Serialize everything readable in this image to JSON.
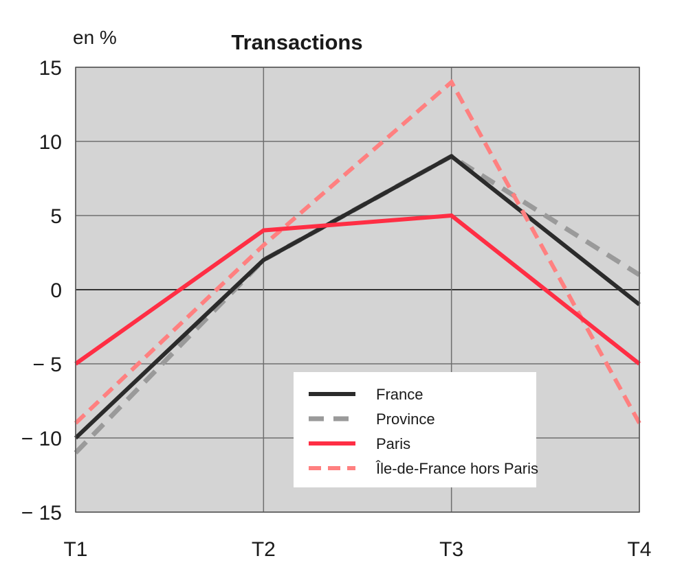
{
  "chart_data": {
    "type": "line",
    "title": "Transactions",
    "ylabel": "en %",
    "xlabel": "",
    "categories": [
      "T1",
      "T2",
      "T3",
      "T4"
    ],
    "ylim": [
      -15,
      15
    ],
    "yticks": [
      15,
      10,
      5,
      0,
      -5,
      -10,
      -15
    ],
    "ytick_labels": [
      "15",
      "10",
      "5",
      "0",
      "− 5",
      "− 10",
      "− 15"
    ],
    "grid": true,
    "background": "#d4d4d4",
    "legend_position": "bottom-right",
    "series": [
      {
        "name": "France",
        "values": [
          -10,
          2,
          9,
          -1
        ],
        "color": "#2b2b2b",
        "dash": "solid"
      },
      {
        "name": "Province",
        "values": [
          -11,
          2,
          9,
          1
        ],
        "color": "#9a9a9a",
        "dash": "dashed"
      },
      {
        "name": "Paris",
        "values": [
          -5,
          4,
          5,
          -5
        ],
        "color": "#ff2e44",
        "dash": "solid"
      },
      {
        "name": "Île-de-France hors Paris",
        "values": [
          -9,
          3,
          14,
          -9
        ],
        "color": "#ff8080",
        "dash": "dashed"
      }
    ]
  }
}
